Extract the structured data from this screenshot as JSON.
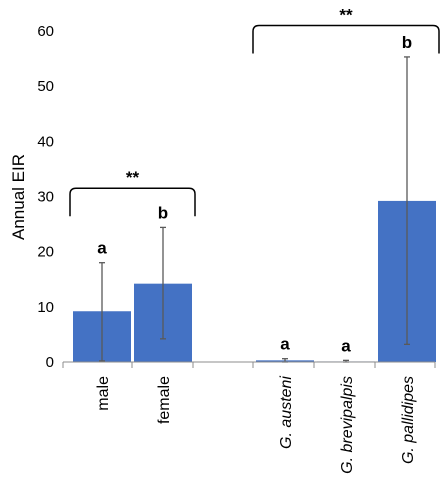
{
  "chart_data": {
    "type": "bar",
    "title": "",
    "xlabel": "",
    "ylabel": "Annual EIR",
    "ylim": [
      0,
      60
    ],
    "yticks": [
      0,
      10,
      20,
      30,
      40,
      50,
      60
    ],
    "grid": false,
    "bar_color": "#4472C4",
    "error_color": "#595959",
    "categories": [
      "male",
      "female",
      "G. austeni",
      "G. brevipalpis",
      "G. pallidipes"
    ],
    "italic_categories": [
      false,
      false,
      true,
      true,
      true
    ],
    "values": [
      9.2,
      14.2,
      0.3,
      0.1,
      29.2
    ],
    "error_low": [
      0.2,
      4.2,
      0.0,
      0.0,
      3.2
    ],
    "error_high": [
      18.0,
      24.4,
      0.6,
      0.3,
      55.3
    ],
    "significance_letters": [
      "a",
      "b",
      "a",
      "a",
      "b"
    ],
    "group_brackets": [
      {
        "label": "**",
        "categories": [
          "male",
          "female"
        ],
        "level": 31.5
      },
      {
        "label": "**",
        "categories": [
          "G. austeni",
          "G. brevipalpis",
          "G. pallidipes"
        ],
        "level": 61
      }
    ]
  }
}
